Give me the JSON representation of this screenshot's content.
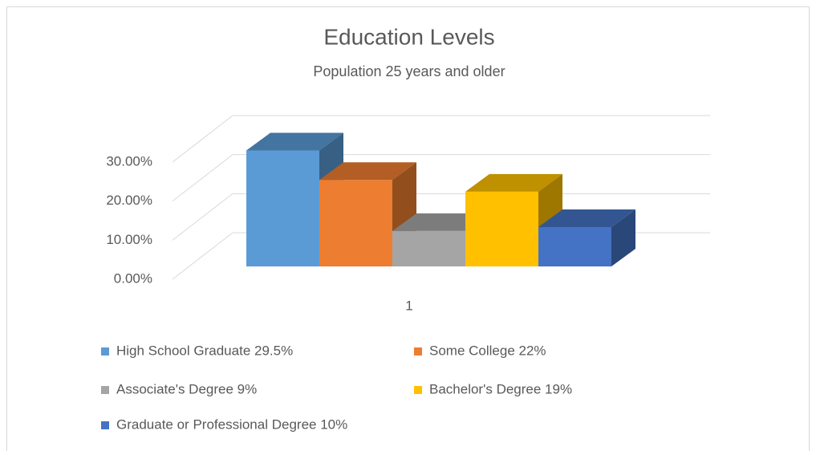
{
  "chart_data": {
    "type": "bar3d",
    "title": "Education Levels",
    "subtitle": "Population 25 years and older",
    "categories": [
      "1"
    ],
    "series": [
      {
        "name": "High School Graduate 29.5%",
        "color": "#5b9bd5",
        "values": [
          29.5
        ]
      },
      {
        "name": "Some College 22%",
        "color": "#ed7d31",
        "values": [
          22
        ]
      },
      {
        "name": "Associate's Degree 9%",
        "color": "#a5a5a5",
        "values": [
          9
        ]
      },
      {
        "name": "Bachelor's Degree 19%",
        "color": "#ffc000",
        "values": [
          19
        ]
      },
      {
        "name": "Graduate or Professional Degree 10%",
        "color": "#4472c4",
        "values": [
          10
        ]
      }
    ],
    "ylim": [
      0,
      30
    ],
    "yticks": [
      {
        "value": 0,
        "label": "0.00%"
      },
      {
        "value": 10,
        "label": "10.00%"
      },
      {
        "value": 20,
        "label": "20.00%"
      },
      {
        "value": 30,
        "label": "30.00%"
      }
    ],
    "grid": true,
    "legend": "bottom"
  }
}
